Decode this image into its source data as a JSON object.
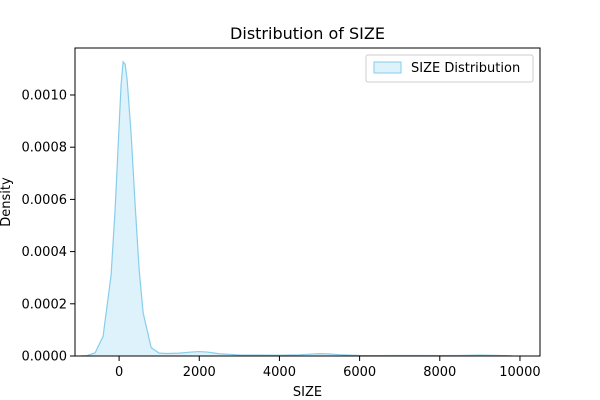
{
  "chart_data": {
    "type": "area",
    "title": "Distribution of SIZE",
    "xlabel": "SIZE",
    "ylabel": "Density",
    "xlim": [
      -1100,
      10500
    ],
    "ylim": [
      0,
      0.00118
    ],
    "xticks": [
      0,
      2000,
      4000,
      6000,
      8000,
      10000
    ],
    "xtick_labels": [
      "0",
      "2000",
      "4000",
      "6000",
      "8000",
      "10000"
    ],
    "yticks": [
      0.0,
      0.0002,
      0.0004,
      0.0006,
      0.0008,
      0.001
    ],
    "ytick_labels": [
      "0.0000",
      "0.0002",
      "0.0004",
      "0.0006",
      "0.0008",
      "0.0010"
    ],
    "grid": false,
    "legend": {
      "position": "top-right",
      "entries": [
        "SIZE Distribution"
      ]
    },
    "colors": {
      "line": "#87ceeb",
      "fill": "#ddf2fa"
    },
    "series": [
      {
        "name": "SIZE Distribution",
        "x": [
          -950,
          -800,
          -600,
          -400,
          -200,
          -100,
          0,
          50,
          100,
          150,
          200,
          300,
          400,
          500,
          600,
          800,
          1000,
          1200,
          1500,
          1800,
          2000,
          2200,
          2500,
          3000,
          3500,
          4000,
          4500,
          4800,
          5000,
          5200,
          5500,
          6000,
          6500,
          7000,
          7500,
          8000,
          8500,
          9000,
          9500,
          9800
        ],
        "y": [
          0.0,
          1.5e-06,
          1.2e-05,
          7.5e-05,
          0.00031,
          0.00056,
          0.00088,
          0.00104,
          0.001127,
          0.001118,
          0.00106,
          0.00085,
          0.00058,
          0.00033,
          0.000165,
          3.2e-05,
          1.1e-05,
          9.5e-06,
          1.1e-05,
          1.5e-05,
          1.7e-05,
          1.5e-05,
          8.5e-06,
          4e-06,
          3.5e-06,
          3e-06,
          4.5e-06,
          7.5e-06,
          9e-06,
          8e-06,
          5e-06,
          2e-06,
          1.5e-06,
          2e-06,
          2e-06,
          1.5e-06,
          2e-06,
          3.5e-06,
          2e-06,
          5e-07
        ]
      }
    ]
  }
}
